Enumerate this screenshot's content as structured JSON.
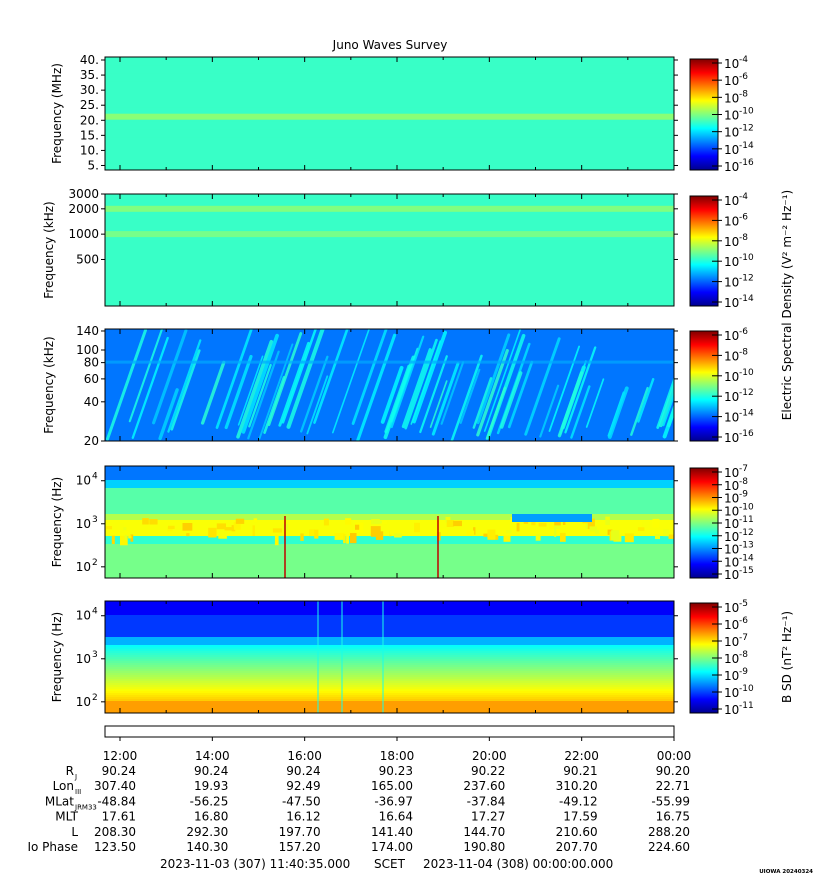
{
  "title": "Juno Waves Survey",
  "colors": {
    "colormap": [
      "#00008f",
      "#0000ff",
      "#0080ff",
      "#00ffff",
      "#80ff80",
      "#ffff00",
      "#ff8000",
      "#ff0000",
      "#800000"
    ],
    "axis": "#000000"
  },
  "chart_data": [
    {
      "type": "heatmap",
      "ylabel": "Frequency (MHz)",
      "yscale": "linear",
      "ylim": [
        3.5,
        41
      ],
      "yticks": [
        {
          "v": 5,
          "label": "5."
        },
        {
          "v": 10,
          "label": "10."
        },
        {
          "v": 15,
          "label": "15."
        },
        {
          "v": 20,
          "label": "20."
        },
        {
          "v": 25,
          "label": "25."
        },
        {
          "v": 30,
          "label": "30."
        },
        {
          "v": 35,
          "label": "35."
        },
        {
          "v": 40,
          "label": "40."
        }
      ],
      "ytick_suffix": "",
      "base_level": 0.43,
      "bands": [
        {
          "y": 21.2,
          "level": 0.51
        }
      ],
      "colorbar": {
        "ticks": [
          "10",
          "10",
          "10",
          "10",
          "10",
          "10",
          "10"
        ],
        "exponents": [
          "-4",
          "-6",
          "-8",
          "-10",
          "-12",
          "-14",
          "-16"
        ],
        "label": ""
      }
    },
    {
      "type": "heatmap",
      "ylabel": "Frequency (kHz)",
      "yscale": "log",
      "ylim": [
        140,
        3000
      ],
      "yticks": [
        {
          "v": 500,
          "label": "500"
        },
        {
          "v": 1000,
          "label": "1000"
        },
        {
          "v": 2000,
          "label": "2000"
        },
        {
          "v": 3000,
          "label": "3000"
        }
      ],
      "base_level": 0.43,
      "bands": [
        {
          "y": 2000,
          "level": 0.5
        },
        {
          "y": 1000,
          "level": 0.49
        }
      ],
      "colorbar": {
        "ticks": [
          "10",
          "10",
          "10",
          "10",
          "10",
          "10"
        ],
        "exponents": [
          "-4",
          "-6",
          "-8",
          "-10",
          "-12",
          "-14"
        ],
        "label": "Electric Spectral Density (V² m⁻² Hz⁻¹)"
      }
    },
    {
      "type": "heatmap",
      "ylabel": "Frequency (kHz)",
      "yscale": "log",
      "ylim": [
        20,
        145
      ],
      "yticks": [
        {
          "v": 20,
          "label": "20"
        },
        {
          "v": 40,
          "label": "40"
        },
        {
          "v": 60,
          "label": "60"
        },
        {
          "v": 80,
          "label": "80"
        },
        {
          "v": 100,
          "label": "100"
        },
        {
          "v": 140,
          "label": "140"
        }
      ],
      "base_level": 0.24,
      "colorbar": {
        "ticks": [
          "10",
          "10",
          "10",
          "10",
          "10",
          "10"
        ],
        "exponents": [
          "-6",
          "-8",
          "-10",
          "-12",
          "-14",
          "-16"
        ],
        "label": ""
      }
    },
    {
      "type": "heatmap",
      "ylabel": "Frequency (Hz)",
      "yscale": "log",
      "ylim": [
        55,
        22000
      ],
      "yticks": [
        {
          "v": 100,
          "label": "10",
          "exp": "2"
        },
        {
          "v": 1000,
          "label": "10",
          "exp": "3"
        },
        {
          "v": 10000,
          "label": "10",
          "exp": "4"
        }
      ],
      "base_level": 0.45,
      "colorbar": {
        "ticks": [
          "10",
          "10",
          "10",
          "10",
          "10",
          "10",
          "10",
          "10",
          "10"
        ],
        "exponents": [
          "-7",
          "-8",
          "-9",
          "-10",
          "-11",
          "-12",
          "-13",
          "-14",
          "-15"
        ],
        "label": ""
      }
    },
    {
      "type": "heatmap",
      "ylabel": "Frequency (Hz)",
      "yscale": "log",
      "ylim": [
        55,
        22000
      ],
      "yticks": [
        {
          "v": 100,
          "label": "10",
          "exp": "2"
        },
        {
          "v": 1000,
          "label": "10",
          "exp": "3"
        },
        {
          "v": 10000,
          "label": "10",
          "exp": "4"
        }
      ],
      "base_level": 0.35,
      "colorbar": {
        "ticks": [
          "10",
          "10",
          "10",
          "10",
          "10",
          "10",
          "10"
        ],
        "exponents": [
          "-5",
          "-6",
          "-7",
          "-8",
          "-9",
          "-10",
          "-11"
        ],
        "label": "B SD (nT² Hz⁻¹)"
      }
    }
  ],
  "time_axis": {
    "ticks": [
      "12:00",
      "14:00",
      "16:00",
      "18:00",
      "20:00",
      "22:00",
      "00:00"
    ]
  },
  "ephemeris": [
    {
      "label": "R",
      "sub": "J",
      "values": [
        "90.24",
        "90.24",
        "90.24",
        "90.23",
        "90.22",
        "90.21",
        "90.20"
      ]
    },
    {
      "label": "Lon",
      "sub": "III",
      "values": [
        "307.40",
        "19.93",
        "92.49",
        "165.00",
        "237.60",
        "310.20",
        "22.71"
      ]
    },
    {
      "label": "MLat",
      "sub": "JRM33",
      "values": [
        "-48.84",
        "-56.25",
        "-47.50",
        "-36.97",
        "-37.84",
        "-49.12",
        "-55.99"
      ]
    },
    {
      "label": "MLT",
      "sub": "",
      "values": [
        "17.61",
        "16.80",
        "16.12",
        "16.64",
        "17.27",
        "17.59",
        "16.75"
      ]
    },
    {
      "label": "L",
      "sub": "",
      "values": [
        "208.30",
        "292.30",
        "197.70",
        "141.40",
        "144.70",
        "210.60",
        "288.20"
      ]
    },
    {
      "label": "Io Phase",
      "sub": "",
      "values": [
        "123.50",
        "140.30",
        "157.20",
        "174.00",
        "190.80",
        "207.70",
        "224.60"
      ]
    }
  ],
  "footer": {
    "start": "2023-11-03 (307) 11:40:35.000",
    "scet": "SCET",
    "end": "2023-11-04 (308) 00:00:00.000",
    "stamp": "UIOWA 20240324"
  }
}
